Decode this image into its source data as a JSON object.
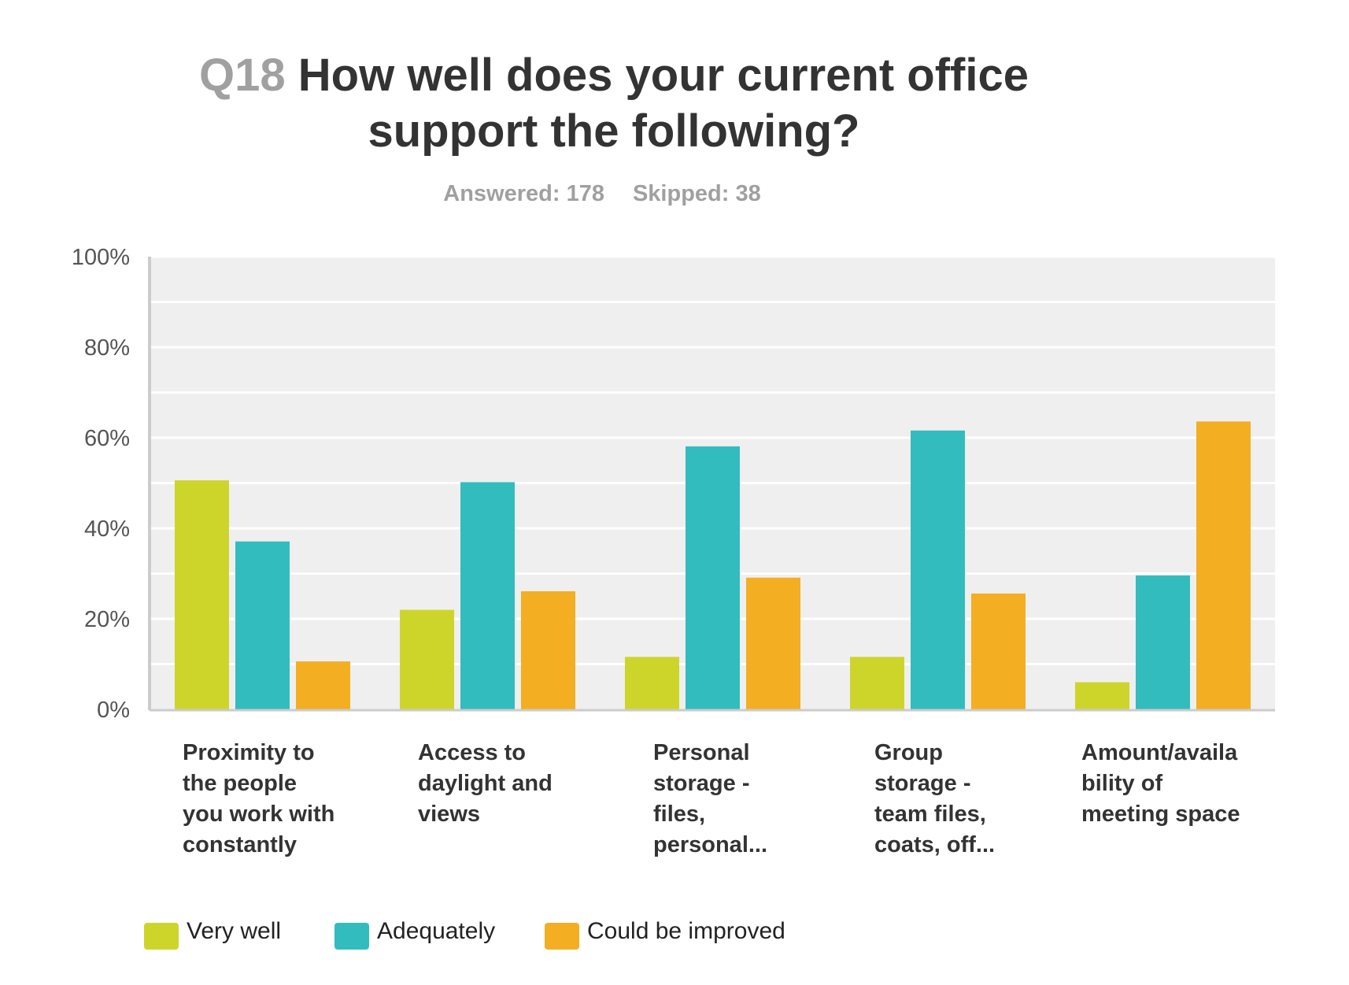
{
  "header": {
    "question_number": "Q18",
    "question_text": "How well does your current office support the following?",
    "answered": "Answered: 178",
    "skipped": "Skipped: 38"
  },
  "colors": {
    "very_well": "#cdd52b",
    "adequately": "#33bcbe",
    "could_be_improved": "#f3ae22",
    "plot_bg": "#efefef",
    "gridline": "#ffffff",
    "axis": "#cccccc"
  },
  "chart_data": {
    "type": "bar",
    "title": "Q18 How well does your current office support the following?",
    "xlabel": "",
    "ylabel": "",
    "ylim": [
      0,
      100
    ],
    "yticks": [
      "0%",
      "20%",
      "40%",
      "60%",
      "80%",
      "100%"
    ],
    "categories": [
      "Proximity to\nthe people\nyou work with\nconstantly",
      "Access to\ndaylight and\nviews",
      "Personal\nstorage -\nfiles,\npersonal...",
      "Group\nstorage -\nteam files,\ncoats, off...",
      "Amount/availa\nbility of\nmeeting space"
    ],
    "series": [
      {
        "name": "Very well",
        "color": "#cdd52b",
        "values": [
          50.6,
          22.0,
          11.6,
          11.6,
          6.0
        ]
      },
      {
        "name": "Adequately",
        "color": "#33bcbe",
        "values": [
          37.1,
          50.2,
          58.1,
          61.6,
          29.6
        ]
      },
      {
        "name": "Could be improved",
        "color": "#f3ae22",
        "values": [
          10.6,
          26.1,
          29.1,
          25.6,
          63.6
        ]
      }
    ],
    "legend_position": "bottom-left",
    "grid": true
  }
}
